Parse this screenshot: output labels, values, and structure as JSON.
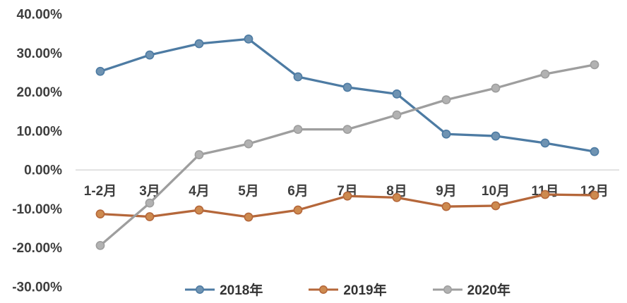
{
  "chart_data": {
    "type": "line",
    "title": "",
    "xlabel": "",
    "ylabel": "",
    "categories": [
      "1-2月",
      "3月",
      "4月",
      "5月",
      "6月",
      "7月",
      "8月",
      "9月",
      "10月",
      "11月",
      "12月"
    ],
    "series": [
      {
        "name": "2018年",
        "color": "#4d7ba3",
        "marker_fill": "#6f93b2",
        "values": [
          25.3,
          29.5,
          32.4,
          33.6,
          23.9,
          21.2,
          19.5,
          9.2,
          8.7,
          6.9,
          4.7
        ]
      },
      {
        "name": "2019年",
        "color": "#b5673a",
        "marker_fill": "#cd8a4f",
        "values": [
          -11.3,
          -12.0,
          -10.3,
          -12.1,
          -10.3,
          -6.7,
          -7.1,
          -9.4,
          -9.2,
          -6.3,
          -6.5
        ]
      },
      {
        "name": "2020年",
        "color": "#9e9e9e",
        "marker_fill": "#b2b2b2",
        "values": [
          -19.4,
          -8.5,
          3.9,
          6.7,
          10.4,
          10.4,
          14.1,
          18.0,
          21.0,
          24.6,
          27.0
        ]
      }
    ],
    "y_axis": {
      "tick_values": [
        40,
        30,
        20,
        10,
        0,
        -10,
        -20,
        -30
      ],
      "tick_labels": [
        "40.00%",
        "30.00%",
        "20.00%",
        "10.00%",
        "0.00%",
        "-10.00%",
        "-20.00%",
        "-30.00%"
      ],
      "format": "percent"
    },
    "ylim": [
      -30,
      40
    ],
    "grid": "zero-axis-line-only",
    "axis_line_color": "#d6d6d6",
    "text_color": "#3e3e3e",
    "legend_position": "bottom"
  }
}
